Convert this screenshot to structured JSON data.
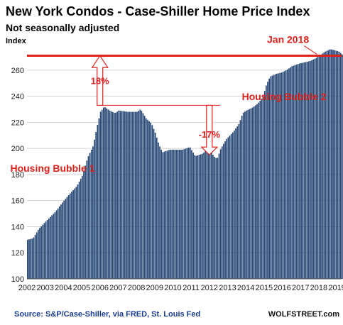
{
  "chart_data": {
    "type": "bar",
    "title": "New York Condos - Case-Shiller Home Price Index",
    "subtitle": "Not seasonally adjusted",
    "ylabel": "Index",
    "ylim": [
      100,
      280
    ],
    "yticks": [
      100,
      120,
      140,
      160,
      180,
      200,
      220,
      240,
      260
    ],
    "xticks": [
      "2002",
      "2003",
      "2004",
      "2005",
      "2006",
      "2007",
      "2008",
      "2009",
      "2010",
      "2011",
      "2012",
      "2013",
      "2014",
      "2015",
      "2016",
      "2017",
      "2018",
      "2019"
    ],
    "x_start": 2002,
    "x_end": 2019.25,
    "series": [
      {
        "color": "#2a4a78",
        "anchors": [
          [
            2002.0,
            130
          ],
          [
            2002.3,
            131
          ],
          [
            2002.6,
            138
          ],
          [
            2003.0,
            144
          ],
          [
            2003.5,
            151
          ],
          [
            2004.0,
            160
          ],
          [
            2004.3,
            165
          ],
          [
            2004.7,
            171
          ],
          [
            2005.0,
            179
          ],
          [
            2005.3,
            193
          ],
          [
            2005.6,
            202
          ],
          [
            2005.8,
            216
          ],
          [
            2006.0,
            228
          ],
          [
            2006.2,
            232
          ],
          [
            2006.5,
            229
          ],
          [
            2006.8,
            227
          ],
          [
            2007.0,
            229
          ],
          [
            2007.5,
            228
          ],
          [
            2008.0,
            228
          ],
          [
            2008.2,
            230
          ],
          [
            2008.5,
            223
          ],
          [
            2008.8,
            219
          ],
          [
            2009.0,
            212
          ],
          [
            2009.2,
            203
          ],
          [
            2009.4,
            197
          ],
          [
            2009.8,
            199
          ],
          [
            2010.5,
            199
          ],
          [
            2010.9,
            201
          ],
          [
            2011.2,
            194
          ],
          [
            2011.6,
            196
          ],
          [
            2011.9,
            200
          ],
          [
            2012.0,
            200
          ],
          [
            2012.2,
            194
          ],
          [
            2012.4,
            192
          ],
          [
            2012.6,
            200
          ],
          [
            2012.9,
            207
          ],
          [
            2013.3,
            213
          ],
          [
            2013.6,
            219
          ],
          [
            2013.8,
            227
          ],
          [
            2014.0,
            229
          ],
          [
            2014.3,
            231
          ],
          [
            2014.6,
            234
          ],
          [
            2014.9,
            239
          ],
          [
            2015.1,
            249
          ],
          [
            2015.3,
            255
          ],
          [
            2015.6,
            257
          ],
          [
            2015.9,
            258
          ],
          [
            2016.2,
            260
          ],
          [
            2016.5,
            263
          ],
          [
            2016.9,
            265
          ],
          [
            2017.2,
            266
          ],
          [
            2017.5,
            267
          ],
          [
            2017.8,
            269
          ],
          [
            2018.0,
            271
          ],
          [
            2018.3,
            274
          ],
          [
            2018.6,
            276
          ],
          [
            2018.9,
            275
          ],
          [
            2019.1,
            274
          ],
          [
            2019.25,
            272
          ]
        ]
      }
    ],
    "reference_line": {
      "label": "Jan 2018",
      "value": 271,
      "color": "#e0201b"
    },
    "annotations": [
      {
        "text": "Housing Bubble 1",
        "x": 2003.4,
        "y": 182
      },
      {
        "text": "Housing Bubble 2",
        "x": 2016.1,
        "y": 237
      },
      {
        "text": "18%",
        "x": 2006.0,
        "y": 252
      },
      {
        "text": "-17%",
        "x": 2012.0,
        "y": 211
      }
    ]
  },
  "footer": {
    "source": "Source: S&P/Case-Shiller, via FRED,  St. Louis Fed",
    "brand": "WOLFSTREET.com"
  }
}
